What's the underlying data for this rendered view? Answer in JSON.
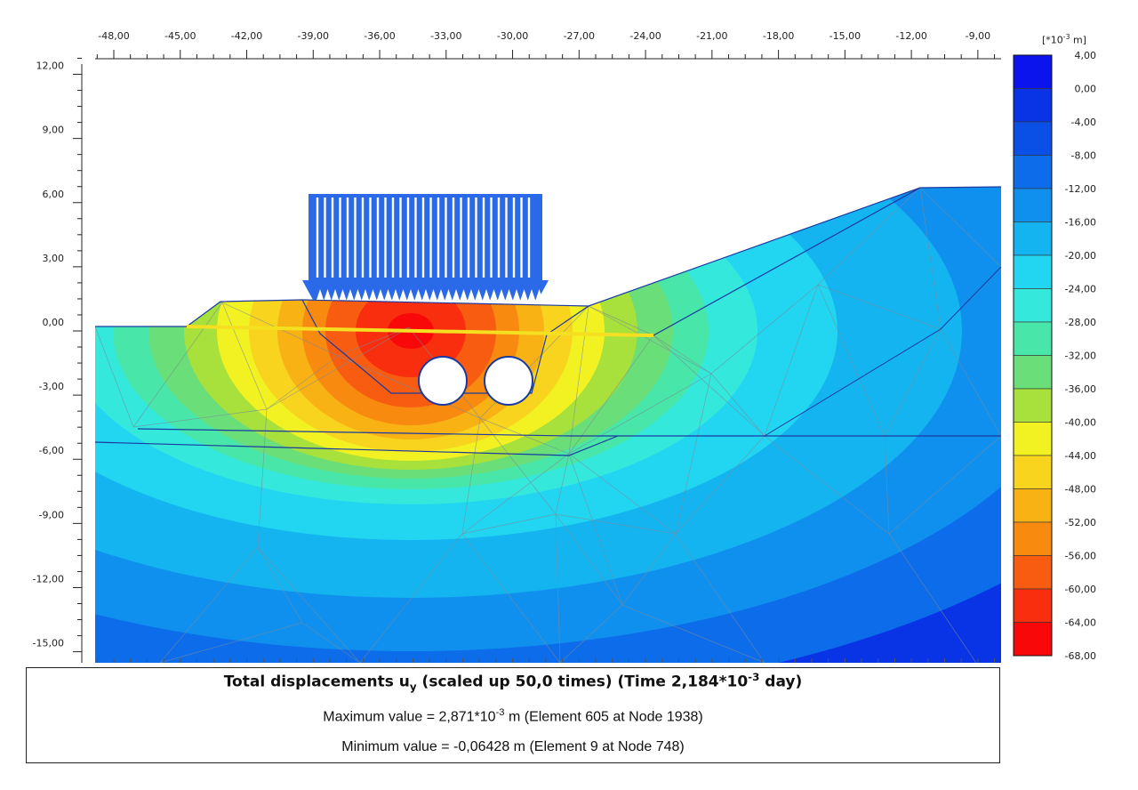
{
  "chart_data": {
    "type": "heatmap",
    "title": "Total displacements u_y (scaled up 50,0 times) (Time 2,184*10^-3 day)",
    "title_parts": {
      "prefix": "Total displacements u",
      "sub": "y",
      "middle": " (scaled up 50,0 times) (Time 2,184*10",
      "sup": "-3",
      "suffix": " day)"
    },
    "x_ticks": [
      "-48,00",
      "-45,00",
      "-42,00",
      "-39,00",
      "-36,00",
      "-33,00",
      "-30,00",
      "-27,00",
      "-24,00",
      "-21,00",
      "-18,00",
      "-15,00",
      "-12,00",
      "-9,00"
    ],
    "x_tick_values": [
      -48,
      -45,
      -42,
      -39,
      -36,
      -33,
      -30,
      -27,
      -24,
      -21,
      -18,
      -15,
      -12,
      -9
    ],
    "y_ticks": [
      "12,00",
      "9,00",
      "6,00",
      "3,00",
      "0,00",
      "-3,00",
      "-6,00",
      "-9,00",
      "-12,00",
      "-15,00"
    ],
    "y_tick_values": [
      12,
      9,
      6,
      3,
      0,
      -3,
      -6,
      -9,
      -12,
      -15
    ],
    "xlim": [
      -48.9,
      -8.0
    ],
    "ylim": [
      -15.5,
      12.5
    ],
    "colorbar": {
      "unit_prefix": "[*10",
      "unit_sup": "-3",
      "unit_suffix": " m]",
      "labels": [
        "4,00",
        "0,00",
        "-4,00",
        "-8,00",
        "-12,00",
        "-16,00",
        "-20,00",
        "-24,00",
        "-28,00",
        "-32,00",
        "-36,00",
        "-40,00",
        "-44,00",
        "-48,00",
        "-52,00",
        "-56,00",
        "-60,00",
        "-64,00",
        "-68,00"
      ],
      "colors": [
        "#0c14ee",
        "#0834e6",
        "#0a50e6",
        "#0c6cea",
        "#1090ee",
        "#14b4f0",
        "#22d6f2",
        "#34e8dc",
        "#48e6a8",
        "#6ade78",
        "#a8e03c",
        "#f2f222",
        "#f8d41e",
        "#f8b214",
        "#f88a10",
        "#f85c10",
        "#f82e0e",
        "#f80808"
      ]
    },
    "max_line": {
      "prefix": "Maximum value = 2,871*10",
      "sup": "-3",
      "suffix": " m (Element 605 at Node 1938)"
    },
    "min_line": "Minimum value = -0,06428 m (Element 9 at Node 748)",
    "max_value_m": 0.002871,
    "min_value_m": -0.06428
  }
}
